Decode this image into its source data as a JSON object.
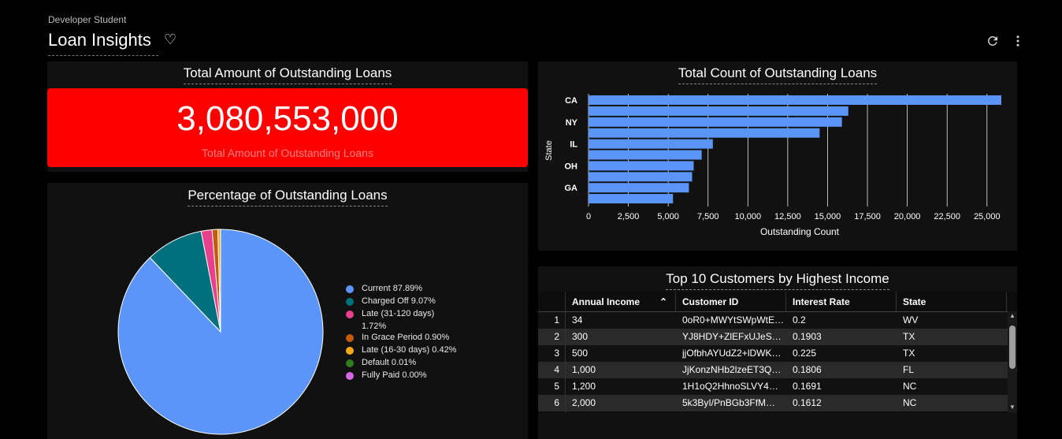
{
  "header": {
    "owner": "Developer Student",
    "title": "Loan Insights",
    "heart_icon": "heart-outline-icon",
    "refresh_icon": "refresh-icon",
    "more_icon": "more-vert-icon"
  },
  "scorecard": {
    "title": "Total Amount of Outstanding Loans",
    "value": "3,080,553,000",
    "label": "Total Amount of Outstanding Loans",
    "background": "#ff0000"
  },
  "pie": {
    "title": "Percentage of Outstanding Loans",
    "legend": [
      {
        "label": "Current 87.89%",
        "color": "#5b95f9"
      },
      {
        "label": "Charged Off 9.07%",
        "color": "#00707c"
      },
      {
        "label": "Late (31-120 days)",
        "label2": "1.72%",
        "color": "#e8408d"
      },
      {
        "label": "In Grace Period 0.90%",
        "color": "#c35a0f"
      },
      {
        "label": "Late (16-30 days) 0.42%",
        "color": "#f4a91b"
      },
      {
        "label": "Default 0.01%",
        "color": "#2f7d1f"
      },
      {
        "label": "Fully Paid 0.00%",
        "color": "#d567e3"
      }
    ]
  },
  "bar": {
    "title": "Total Count of Outstanding Loans",
    "ylabel": "State",
    "xlabel": "Outstanding Count",
    "bar_color": "#5b95f9"
  },
  "chart_data": [
    {
      "type": "pie",
      "title": "Percentage of Outstanding Loans",
      "categories": [
        "Current",
        "Charged Off",
        "Late (31-120 days)",
        "In Grace Period",
        "Late (16-30 days)",
        "Default",
        "Fully Paid"
      ],
      "values": [
        87.89,
        9.07,
        1.72,
        0.9,
        0.42,
        0.01,
        0.0
      ]
    },
    {
      "type": "bar",
      "orientation": "horizontal",
      "title": "Total Count of Outstanding Loans",
      "xlabel": "Outstanding Count",
      "ylabel": "State",
      "categories": [
        "CA",
        "",
        "NY",
        "",
        "IL",
        "",
        "OH",
        "",
        "GA",
        ""
      ],
      "values": [
        25900,
        16300,
        15900,
        14500,
        7800,
        7100,
        6600,
        6500,
        6300,
        5300
      ],
      "xlim": [
        0,
        26000
      ],
      "xticks": [
        "0",
        "2,500",
        "5,000",
        "7,500",
        "10,000",
        "12,500",
        "15,000",
        "17,500",
        "20,000",
        "22,500",
        "25,000"
      ],
      "grid": true
    }
  ],
  "table": {
    "title": "Top 10 Customers by Highest Income",
    "columns": [
      "Annual Income",
      "Customer ID",
      "Interest Rate",
      "State"
    ],
    "sort_icon": "sort-ascending-icon",
    "rows": [
      [
        "1",
        "34",
        "0oR0+MWYtSWpWtE…",
        "0.2",
        "WV"
      ],
      [
        "2",
        "300",
        "YJ8HDY+ZlEFxUJeS…",
        "0.1903",
        "TX"
      ],
      [
        "3",
        "500",
        "jjOfbhAYUdZ2+lDWK…",
        "0.225",
        "TX"
      ],
      [
        "4",
        "1,000",
        "JjKonzNHb2lzeET3Q…",
        "0.1806",
        "FL"
      ],
      [
        "5",
        "1,200",
        "1H1oQ2HhnoSLVY4…",
        "0.1691",
        "NC"
      ],
      [
        "6",
        "2,000",
        "5k3ByI/PnBGb3FfM…",
        "0.1612",
        "NC"
      ]
    ]
  }
}
